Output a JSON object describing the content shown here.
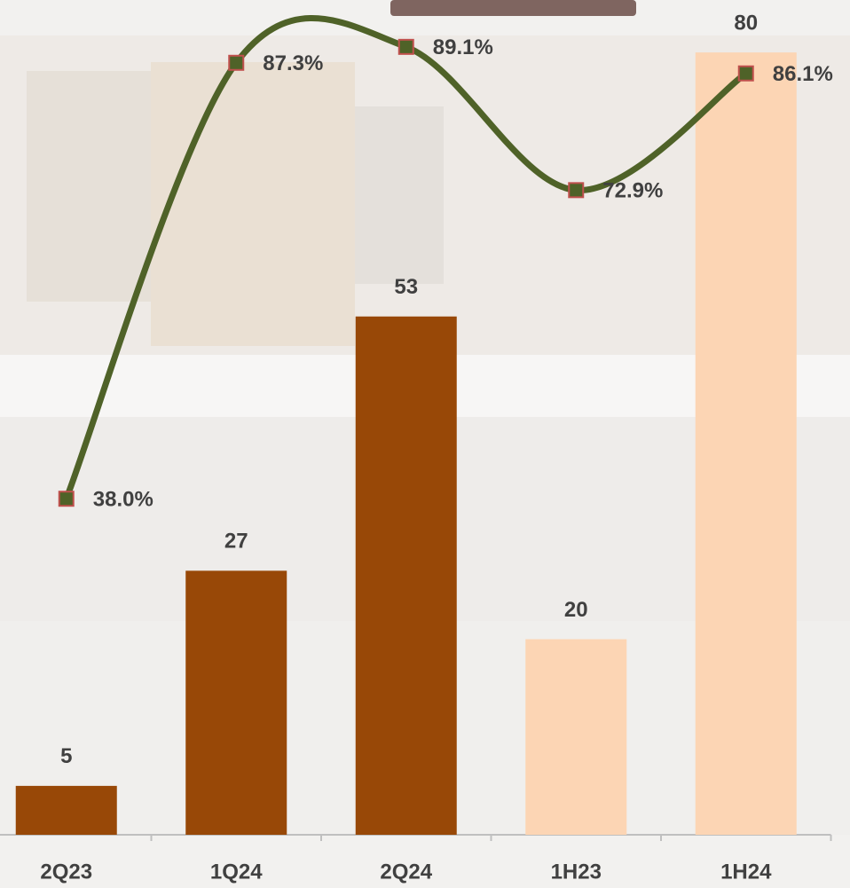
{
  "chart_data": {
    "type": "bar-line",
    "categories": [
      "2Q23",
      "1Q24",
      "2Q24",
      "1H23",
      "1H24"
    ],
    "ylim": [
      0,
      85
    ],
    "y2lim": [
      0,
      94
    ],
    "series": [
      {
        "type": "bar",
        "values": [
          5,
          27,
          53,
          20,
          80
        ],
        "colors": [
          "#984807",
          "#984807",
          "#984807",
          "#fcd5b4",
          "#fcd5b4"
        ]
      },
      {
        "type": "line",
        "axis": "y2",
        "color": "#4f6228",
        "marker_edge_color": "#c0504d",
        "smooth": true,
        "values": [
          38.0,
          87.3,
          89.1,
          72.9,
          86.1
        ],
        "value_labels": [
          "38.0%",
          "87.3%",
          "89.1%",
          "72.9%",
          "86.1%"
        ]
      }
    ]
  }
}
